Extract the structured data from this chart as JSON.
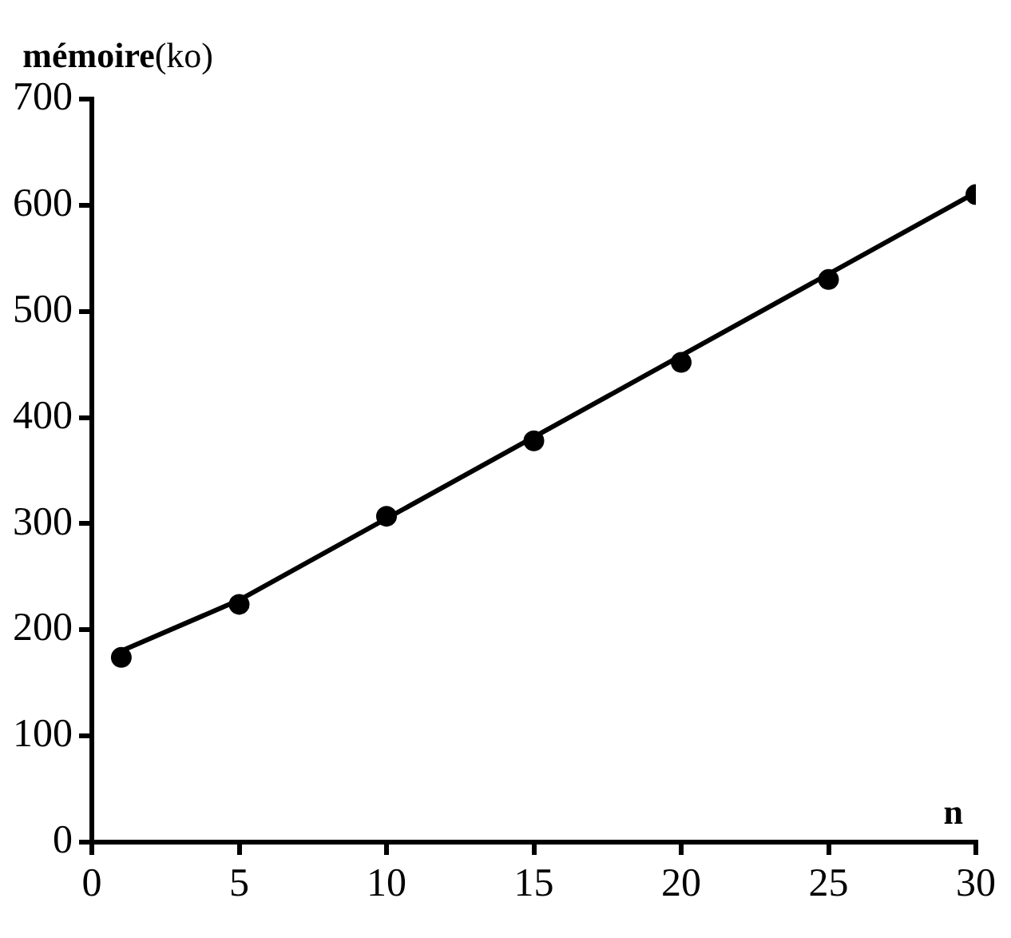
{
  "chart_data": {
    "type": "scatter",
    "xlabel": "n",
    "ylabel": "mémoire(ko)",
    "x": [
      1,
      5,
      10,
      15,
      20,
      25,
      30
    ],
    "series": [
      {
        "color": "#000000",
        "marker": "circle",
        "values": [
          174,
          224,
          307,
          378,
          452,
          530,
          610
        ]
      },
      {
        "type": "line",
        "color": "#000000",
        "marker": "none",
        "x": [
          1,
          5,
          30
        ],
        "values": [
          180,
          228,
          612
        ]
      }
    ],
    "xlim": [
      0,
      30
    ],
    "xticks": [
      0,
      5,
      10,
      15,
      20,
      25,
      30
    ],
    "ylim": [
      0,
      700
    ],
    "yticks": [
      0,
      100,
      200,
      300,
      400,
      500,
      600,
      700
    ],
    "grid": false,
    "legend": false,
    "line_style": "solid"
  }
}
